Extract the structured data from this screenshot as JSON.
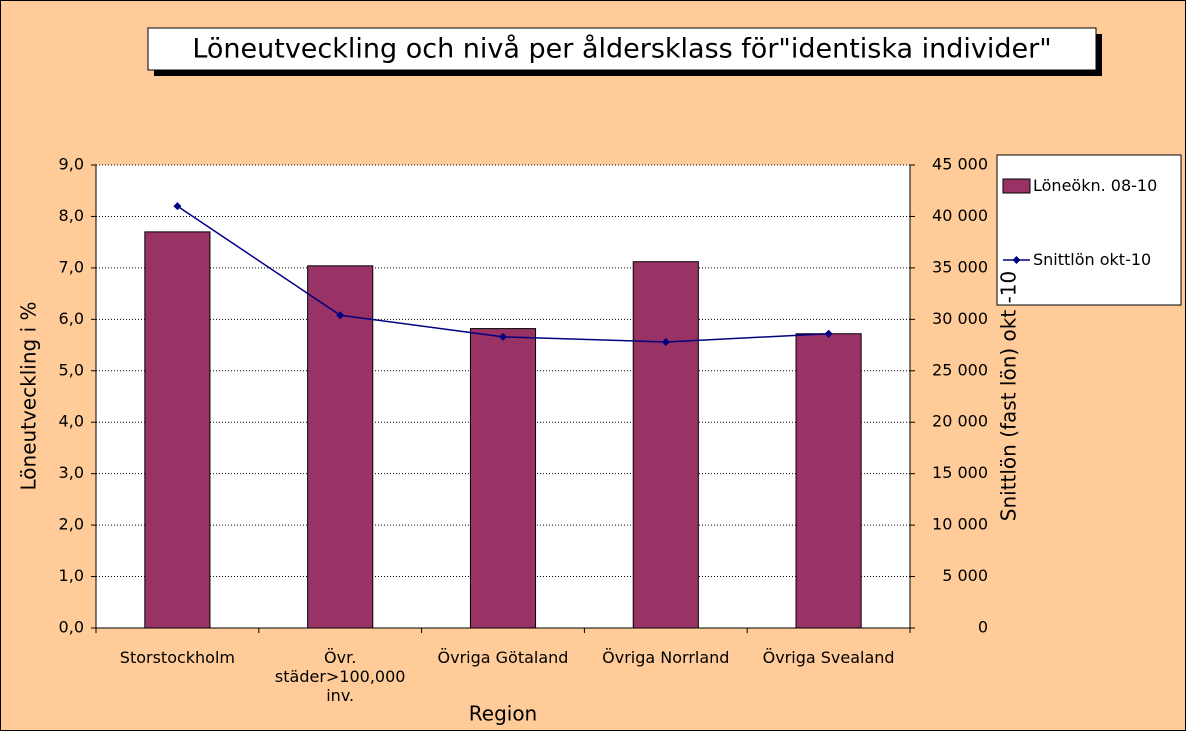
{
  "chart_data": {
    "type": "bar",
    "title": "Löneutveckling och nivå per åldersklass för\"identiska individer\"",
    "x_label": "Region",
    "y_label": "Löneutveckling i %",
    "y2_label": "Snittlön (fast lön) okt -10",
    "categories": [
      "Storstockholm",
      "Övr. städer>100,000 inv.",
      "Övriga Götaland",
      "Övriga Norrland",
      "Övriga Svealand"
    ],
    "series": [
      {
        "name": "Löneökn. 08-10",
        "type": "bar",
        "color": "#993366",
        "values": [
          7.7,
          7.04,
          5.82,
          7.12,
          5.72
        ]
      },
      {
        "name": "Snittlön okt-10",
        "type": "line",
        "axis": "y2",
        "color": "#000080",
        "values": [
          41000,
          30400,
          28300,
          27800,
          28600
        ]
      }
    ],
    "ylim": [
      0,
      9
    ],
    "yticks": [
      {
        "value": 0,
        "label": "0,0"
      },
      {
        "value": 1,
        "label": "1,0"
      },
      {
        "value": 2,
        "label": "2,0"
      },
      {
        "value": 3,
        "label": "3,0"
      },
      {
        "value": 4,
        "label": "4,0"
      },
      {
        "value": 5,
        "label": "5,0"
      },
      {
        "value": 6,
        "label": "6,0"
      },
      {
        "value": 7,
        "label": "7,0"
      },
      {
        "value": 8,
        "label": "8,0"
      },
      {
        "value": 9,
        "label": "9,0"
      }
    ],
    "y2lim": [
      0,
      45000
    ],
    "y2ticks": [
      0,
      {
        "value": 5000,
        "label": "5 000"
      },
      {
        "value": 10000,
        "label": "10 000"
      },
      {
        "value": 15000,
        "label": "15 000"
      },
      {
        "value": 20000,
        "label": "20 000"
      },
      {
        "value": 25000,
        "label": "25 000"
      },
      {
        "value": 30000,
        "label": "30 000"
      },
      {
        "value": 35000,
        "label": "35 000"
      },
      {
        "value": 40000,
        "label": "40 000"
      },
      {
        "value": 45000,
        "label": "45 000"
      }
    ],
    "grid": true,
    "legend": "right"
  }
}
